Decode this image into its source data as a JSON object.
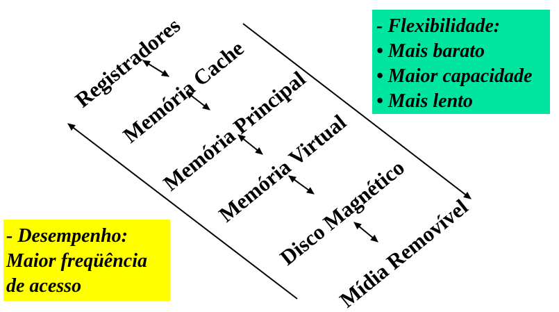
{
  "levels": [
    "Registradores",
    "Memória Cache",
    "Memória Principal",
    "Memória Virtual",
    "Disco Magnético",
    "Mídia Removível"
  ],
  "flexibility_box": {
    "color": "#00e6a0",
    "lines": [
      "- Flexibilidade:",
      "• Mais barato",
      "• Maior capacidade",
      "• Mais lento"
    ]
  },
  "performance_box": {
    "color": "#ffff00",
    "lines": [
      "- Desempenho:",
      "Maior freqüência",
      "de acesso"
    ]
  }
}
